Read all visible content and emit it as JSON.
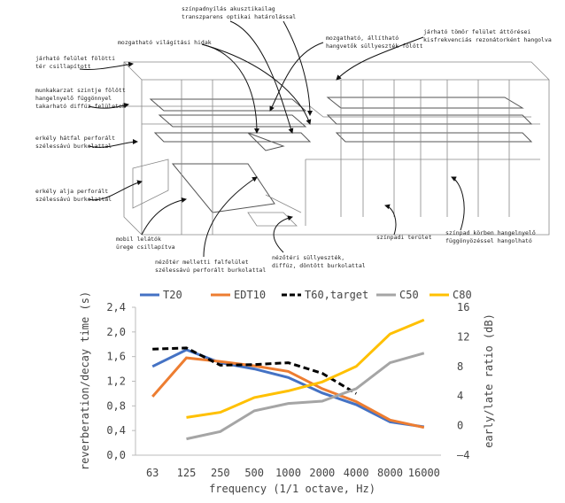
{
  "diagram": {
    "annotations": [
      {
        "lines": [
          "színpadnyílás akusztikailag",
          "transzparens optikai határolással"
        ]
      },
      {
        "lines": [
          "mozgatható, állítható",
          "hangvetők süllyeszték fölött"
        ]
      },
      {
        "lines": [
          "járható tömör felület áttörései",
          "kisfrekvenciás rezonátorként hangolva"
        ]
      },
      {
        "lines": [
          "mozgatható világítási hidak"
        ]
      },
      {
        "lines": [
          "járható felület fölötti",
          "tér csillapított"
        ]
      },
      {
        "lines": [
          "munkakarzat szintje fölött",
          "hangelnyelő függönnyel",
          "takarható diffúz felületek"
        ]
      },
      {
        "lines": [
          "erkély hátfal perforált",
          "szélessávú burkolattal"
        ]
      },
      {
        "lines": [
          "erkély alja perforált",
          "szélessávú burkolattal"
        ]
      },
      {
        "lines": [
          "mobil lelátók",
          "ürege csillapítva"
        ]
      },
      {
        "lines": [
          "nézőtér melletti falfelület",
          "szélessávú perforált burkolattal"
        ]
      },
      {
        "lines": [
          "nézőtéri süllyeszték,",
          "diffúz, döntött burkolattal"
        ]
      },
      {
        "lines": [
          "színpadi terület"
        ]
      },
      {
        "lines": [
          "színpad körben hangelnyelő",
          "függönyözéssel hangolható"
        ]
      }
    ]
  },
  "chart_data": {
    "type": "line",
    "categories": [
      "63",
      "125",
      "250",
      "500",
      "1000",
      "2000",
      "4000",
      "8000",
      "16000"
    ],
    "x_label": "frequency (1/1 octave, Hz)",
    "y_label": "reverberation/decay time (s)",
    "y2_label": "early/late ratio (dB)",
    "ylim": [
      0,
      2.4
    ],
    "yticks": [
      {
        "value": 0,
        "label": "0,0"
      },
      {
        "value": 0.4,
        "label": "0,4"
      },
      {
        "value": 0.8,
        "label": "0,8"
      },
      {
        "value": 1.2,
        "label": "1,2"
      },
      {
        "value": 1.6,
        "label": "1,6"
      },
      {
        "value": 2.0,
        "label": "2,0"
      },
      {
        "value": 2.4,
        "label": "2,4"
      }
    ],
    "y2lim": [
      -4,
      16
    ],
    "y2ticks": [
      {
        "value": -4,
        "label": "–4"
      },
      0,
      4,
      8,
      12,
      16
    ],
    "grid": false,
    "legend": "top",
    "series": [
      {
        "name": "T20",
        "color": "#4472c4",
        "style": "solid",
        "values": [
          1.44,
          1.71,
          1.5,
          1.4,
          1.26,
          1.01,
          0.82,
          0.54,
          0.46
        ]
      },
      {
        "name": "EDT10",
        "color": "#ed7d31",
        "style": "solid",
        "values": [
          0.95,
          1.58,
          1.52,
          1.45,
          1.36,
          1.08,
          0.87,
          0.57,
          0.45
        ]
      },
      {
        "name": "T60,target",
        "color": "#000000",
        "style": "dashed",
        "values": [
          1.72,
          1.74,
          1.46,
          1.47,
          1.5,
          1.33,
          1.0,
          null,
          null
        ]
      },
      {
        "name": "C50",
        "color": "#a5a5a5",
        "style": "solid",
        "axis": "y2",
        "values": [
          null,
          -1.8,
          -0.8,
          2.0,
          3.0,
          3.3,
          5.0,
          8.5,
          9.8
        ]
      },
      {
        "name": "C80",
        "color": "#ffc000",
        "style": "solid",
        "axis": "y2",
        "values": [
          null,
          1.1,
          1.8,
          3.8,
          4.7,
          5.9,
          8.0,
          12.4,
          14.3
        ]
      }
    ]
  }
}
